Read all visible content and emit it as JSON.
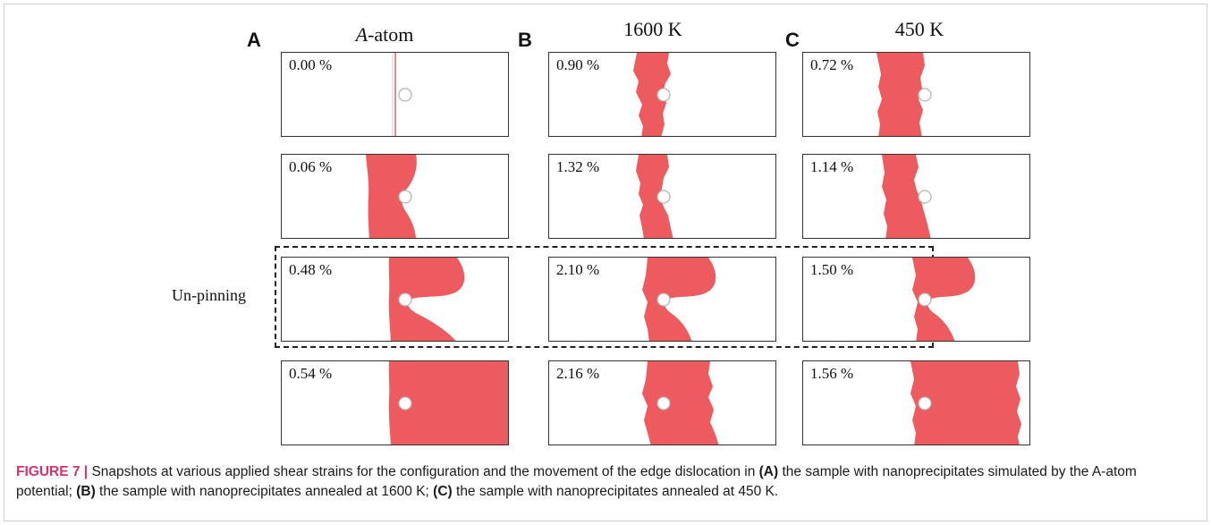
{
  "columns": [
    {
      "letter": "A",
      "title_italic": "A",
      "title_rest": "-atom"
    },
    {
      "letter": "B",
      "title_italic": "",
      "title_rest": "1600 K"
    },
    {
      "letter": "C",
      "title_italic": "",
      "title_rest": "450 K"
    }
  ],
  "panels": [
    [
      "0.00 %",
      "0.90 %",
      "0.72 %"
    ],
    [
      "0.06 %",
      "1.32 %",
      "1.14 %"
    ],
    [
      "0.48 %",
      "2.10 %",
      "1.50 %"
    ],
    [
      "0.54 %",
      "2.16 %",
      "1.56 %"
    ]
  ],
  "row_label": "Un-pinning",
  "caption": {
    "label": "FIGURE 7 |",
    "t1": " Snapshots at various applied shear strains for the configuration and the movement of the edge dislocation in ",
    "a": "(A)",
    "t2": " the sample with nanoprecipitates simulated by the A-atom potential; ",
    "b": "(B)",
    "t3": " the sample with nanoprecipitates annealed at 1600 K; ",
    "c": "(C)",
    "t4": " the sample with nanoprecipitates annealed at 450 K."
  },
  "colors": {
    "dislocation": "#ee5b5e",
    "precipitate_outline": "#b5b5b5"
  }
}
